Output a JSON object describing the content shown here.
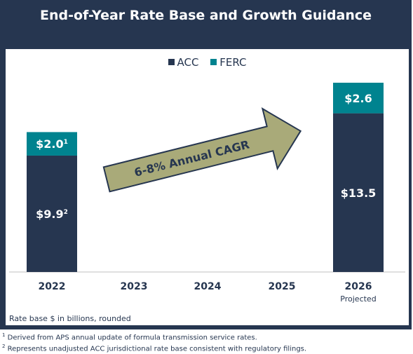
{
  "title": "End-of-Year Rate Base and Growth Guidance",
  "legend": [
    {
      "name": "ACC",
      "color": "#263650"
    },
    {
      "name": "FERC",
      "color": "#00838f"
    }
  ],
  "arrow_label": "6-8% Annual CAGR",
  "note": "Rate base $ in billions, rounded",
  "footnotes": [
    {
      "mark": "1",
      "text": "Derived from APS annual update of formula transmission service rates."
    },
    {
      "mark": "2",
      "text": "Represents unadjusted ACC jurisdictional rate base consistent with regulatory filings."
    }
  ],
  "chart_data": {
    "type": "bar",
    "stacked": true,
    "categories": [
      "2022",
      "2023",
      "2024",
      "2025",
      "2026"
    ],
    "category_sublabels": [
      "",
      "",
      "",
      "",
      "Projected"
    ],
    "series": [
      {
        "name": "ACC",
        "color": "#263650",
        "values": [
          9.9,
          null,
          null,
          null,
          13.5
        ],
        "labels": [
          "$9.9",
          "",
          "",
          "",
          "$13.5"
        ],
        "label_marks": [
          "2",
          "",
          "",
          "",
          ""
        ]
      },
      {
        "name": "FERC",
        "color": "#00838f",
        "values": [
          2.0,
          null,
          null,
          null,
          2.6
        ],
        "labels": [
          "$2.0",
          "",
          "",
          "",
          "$2.6"
        ],
        "label_marks": [
          "1",
          "",
          "",
          "",
          ""
        ]
      }
    ],
    "ylim": [
      0,
      16.1
    ],
    "annotations": [
      "6-8% Annual CAGR"
    ]
  }
}
